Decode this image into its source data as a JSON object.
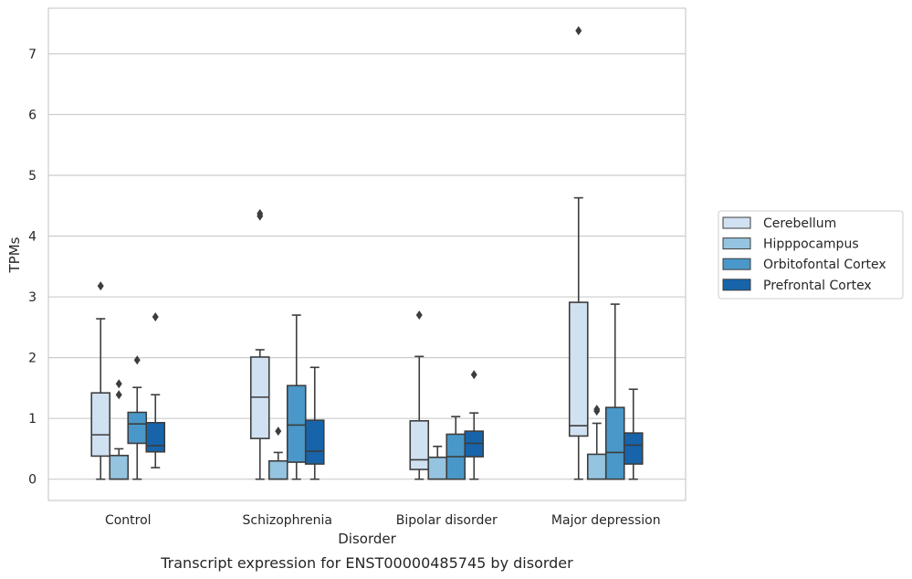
{
  "chart_data": {
    "type": "box",
    "caption": "Transcript expression for ENST00000485745 by disorder",
    "xlabel": "Disorder",
    "ylabel": "TPMs",
    "ylim": [
      -0.35,
      7.75
    ],
    "yticks": [
      0,
      1,
      2,
      3,
      4,
      5,
      6,
      7
    ],
    "grid": "horizontal",
    "legend_position": "right",
    "categories": [
      "Control",
      "Schizophrenia",
      "Bipolar disorder",
      "Major depression"
    ],
    "series": [
      {
        "name": "Cerebellum",
        "color": "#d0e1f2",
        "boxes": [
          {
            "whislo": 0.0,
            "q1": 0.38,
            "med": 0.73,
            "q3": 1.42,
            "whishi": 2.64,
            "fliers": [
              3.18
            ]
          },
          {
            "whislo": 0.0,
            "q1": 0.67,
            "med": 1.35,
            "q3": 2.01,
            "whishi": 2.13,
            "fliers": [
              4.33,
              4.37
            ]
          },
          {
            "whislo": 0.0,
            "q1": 0.16,
            "med": 0.32,
            "q3": 0.96,
            "whishi": 2.02,
            "fliers": [
              2.7
            ]
          },
          {
            "whislo": 0.0,
            "q1": 0.71,
            "med": 0.88,
            "q3": 2.91,
            "whishi": 4.63,
            "fliers": [
              7.38
            ]
          }
        ]
      },
      {
        "name": "Hipppocampus",
        "color": "#94c4df",
        "boxes": [
          {
            "whislo": 0.0,
            "q1": 0.0,
            "med": 0.0,
            "q3": 0.39,
            "whishi": 0.5,
            "fliers": [
              1.39,
              1.57
            ]
          },
          {
            "whislo": 0.0,
            "q1": 0.0,
            "med": 0.0,
            "q3": 0.3,
            "whishi": 0.44,
            "fliers": [
              0.79
            ]
          },
          {
            "whislo": 0.0,
            "q1": 0.0,
            "med": 0.0,
            "q3": 0.36,
            "whishi": 0.54,
            "fliers": []
          },
          {
            "whislo": 0.0,
            "q1": 0.0,
            "med": 0.0,
            "q3": 0.41,
            "whishi": 0.92,
            "fliers": [
              1.12,
              1.15
            ]
          }
        ]
      },
      {
        "name": "Orbitofontal Cortex",
        "color": "#4a98c9",
        "boxes": [
          {
            "whislo": 0.0,
            "q1": 0.59,
            "med": 0.91,
            "q3": 1.1,
            "whishi": 1.51,
            "fliers": [
              1.96
            ]
          },
          {
            "whislo": 0.0,
            "q1": 0.28,
            "med": 0.89,
            "q3": 1.54,
            "whishi": 2.7,
            "fliers": []
          },
          {
            "whislo": 0.0,
            "q1": 0.0,
            "med": 0.37,
            "q3": 0.74,
            "whishi": 1.03,
            "fliers": []
          },
          {
            "whislo": 0.0,
            "q1": 0.0,
            "med": 0.44,
            "q3": 1.18,
            "whishi": 2.88,
            "fliers": []
          }
        ]
      },
      {
        "name": "Prefrontal Cortex",
        "color": "#1764ab",
        "boxes": [
          {
            "whislo": 0.19,
            "q1": 0.45,
            "med": 0.55,
            "q3": 0.93,
            "whishi": 1.39,
            "fliers": [
              2.67
            ]
          },
          {
            "whislo": 0.0,
            "q1": 0.25,
            "med": 0.46,
            "q3": 0.97,
            "whishi": 1.84,
            "fliers": []
          },
          {
            "whislo": 0.0,
            "q1": 0.37,
            "med": 0.59,
            "q3": 0.79,
            "whishi": 1.09,
            "fliers": [
              1.72
            ]
          },
          {
            "whislo": 0.0,
            "q1": 0.25,
            "med": 0.56,
            "q3": 0.76,
            "whishi": 1.48,
            "fliers": []
          }
        ]
      }
    ]
  }
}
